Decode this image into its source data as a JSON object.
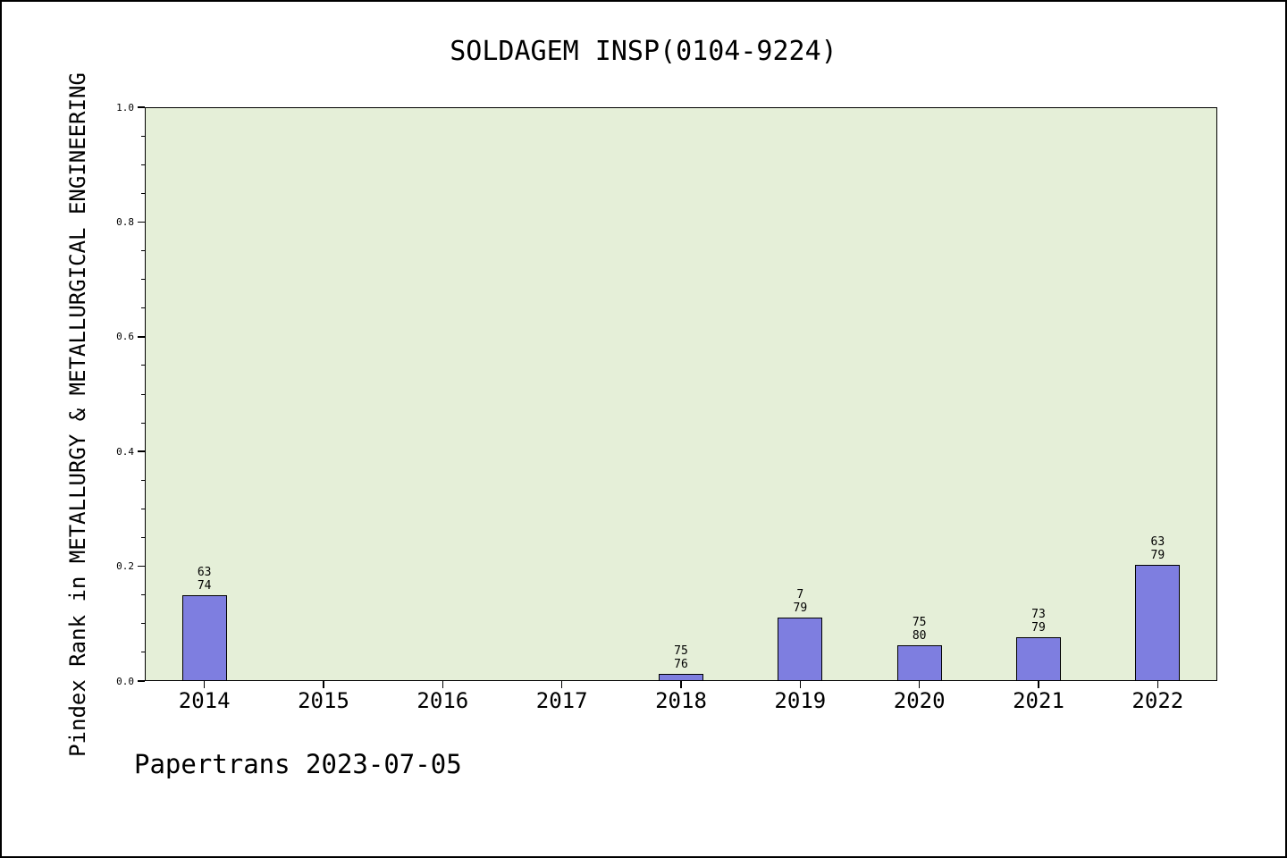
{
  "footer": "Papertrans 2023-07-05",
  "chart_data": {
    "type": "bar",
    "title": "SOLDAGEM INSP(0104-9224)",
    "xlabel": "",
    "ylabel": "Pindex Rank in METALLURGY & METALLURGICAL ENGINEERING",
    "categories": [
      "2014",
      "2015",
      "2016",
      "2017",
      "2018",
      "2019",
      "2020",
      "2021",
      "2022"
    ],
    "values": [
      0.149,
      0,
      0,
      0,
      0.013,
      0.11,
      0.063,
      0.076,
      0.203
    ],
    "bar_labels": [
      [
        "63",
        "74"
      ],
      [],
      [],
      [],
      [
        "75",
        "76"
      ],
      [
        "7",
        "79"
      ],
      [
        "75",
        "80"
      ],
      [
        "73",
        "79"
      ],
      [
        "63",
        "79"
      ]
    ],
    "ylim": [
      0,
      1
    ],
    "yticks": [
      0,
      0.2,
      0.4,
      0.6,
      0.8,
      1.0
    ],
    "ytick_labels": [
      "0.0",
      "0.2",
      "0.4",
      "0.6",
      "0.8",
      "1.0"
    ],
    "minor_tick_step": 0.05,
    "grid": false,
    "legend_position": "none",
    "colors": {
      "bar_fill": "#7e7ee0",
      "bar_edge": "#000000",
      "plot_bg": "#e5efd8",
      "page_bg": "#ffffff",
      "text": "#000000"
    }
  }
}
